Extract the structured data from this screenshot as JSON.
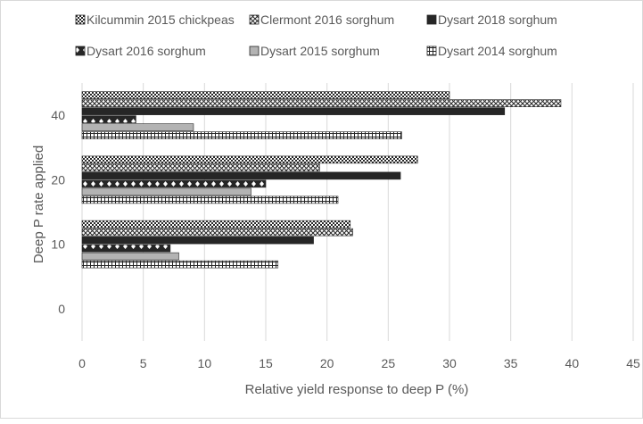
{
  "chart_data": {
    "type": "bar",
    "orientation": "horizontal",
    "title": "",
    "xlabel": "Relative yield response to deep P (%)",
    "ylabel": "Deep P rate applied",
    "xlim": [
      0,
      45
    ],
    "x_ticks": [
      "0",
      "5",
      "10",
      "15",
      "20",
      "25",
      "30",
      "35",
      "40",
      "45"
    ],
    "categories": [
      "0",
      "10",
      "20",
      "40"
    ],
    "grid": true,
    "legend_position": "top",
    "series": [
      {
        "name": "Kilcummin 2015 chickpeas",
        "pattern": "checker",
        "values": [
          null,
          21.9,
          27.4,
          30.0
        ]
      },
      {
        "name": "Clermont 2016 sorghum",
        "pattern": "crosshatch",
        "values": [
          null,
          22.1,
          19.4,
          39.1
        ]
      },
      {
        "name": "Dysart 2018 sorghum",
        "pattern": "solid-dark",
        "values": [
          null,
          18.9,
          26.0,
          34.5
        ]
      },
      {
        "name": "Dysart 2016 sorghum",
        "pattern": "dotted",
        "values": [
          null,
          7.2,
          15.0,
          4.4
        ]
      },
      {
        "name": "Dysart 2015 sorghum",
        "pattern": "solid-light",
        "values": [
          null,
          7.9,
          13.8,
          9.1
        ]
      },
      {
        "name": "Dysart 2014 sorghum",
        "pattern": "grid",
        "values": [
          null,
          16.0,
          20.9,
          26.1
        ]
      }
    ],
    "colors": {
      "dark": "#262626",
      "light": "#b3b3b3",
      "text": "#595959",
      "grid": "#d9d9d9"
    }
  }
}
